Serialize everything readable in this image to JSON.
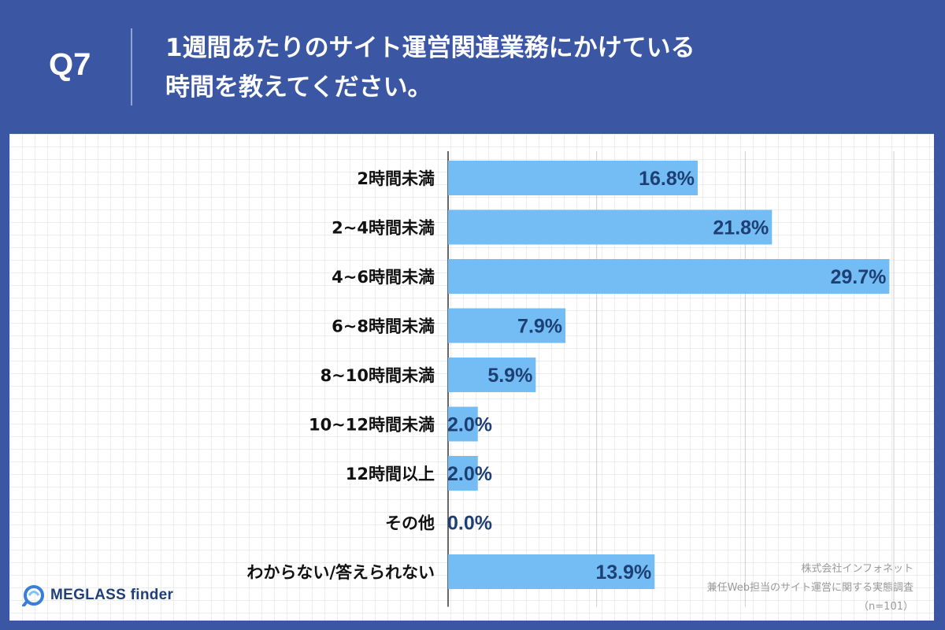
{
  "header": {
    "question": "Q7",
    "title_line1": "1週間あたりのサイト運営関連業務にかけている",
    "title_line2": "時間を教えてください。"
  },
  "chart_data": {
    "type": "bar",
    "orientation": "horizontal",
    "categories": [
      "2時間未満",
      "2~4時間未満",
      "4~6時間未満",
      "6~8時間未満",
      "8~10時間未満",
      "10~12時間未満",
      "12時間以上",
      "その他",
      "わからない/答えられない"
    ],
    "values": [
      16.8,
      21.8,
      29.7,
      7.9,
      5.9,
      2.0,
      2.0,
      0.0,
      13.9
    ],
    "value_labels": [
      "16.8%",
      "21.8%",
      "29.7%",
      "7.9%",
      "5.9%",
      "2.0%",
      "2.0%",
      "0.0%",
      "13.9%"
    ],
    "xlim": [
      0,
      30
    ],
    "grid": true,
    "bar_color": "#74bcf4",
    "label_color": "#1d3f73"
  },
  "source": {
    "company": "株式会社インフォネット",
    "survey": "兼任Web担当のサイト運営に関する実態調査",
    "sample": "（n=101）"
  },
  "logo": {
    "text": "MEGLASS finder",
    "icon": "meglass-logo-icon"
  },
  "colors": {
    "background": "#3b56a2",
    "bar": "#74bcf4",
    "value_text": "#1d3f73"
  }
}
